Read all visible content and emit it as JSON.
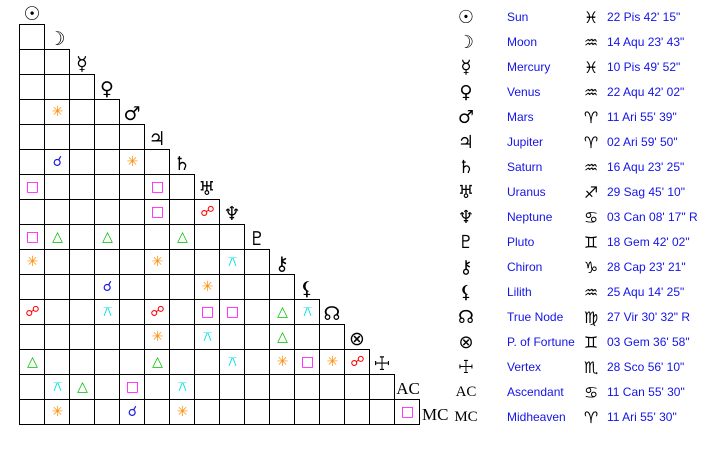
{
  "bodies": [
    {
      "name": "Sun",
      "glyph": "☉",
      "icon": "sun-icon",
      "sign": "♓",
      "sign_icon": "pisces-icon",
      "position": "22 Pis 42' 15\""
    },
    {
      "name": "Moon",
      "glyph": "☽",
      "icon": "moon-icon",
      "sign": "♒",
      "sign_icon": "aquarius-icon",
      "position": "14 Aqu 23' 43\""
    },
    {
      "name": "Mercury",
      "glyph": "☿",
      "icon": "mercury-icon",
      "sign": "♓",
      "sign_icon": "pisces-icon",
      "position": "10 Pis 49' 52\""
    },
    {
      "name": "Venus",
      "glyph": "♀",
      "icon": "venus-icon",
      "sign": "♒",
      "sign_icon": "aquarius-icon",
      "position": "22 Aqu 42' 02\""
    },
    {
      "name": "Mars",
      "glyph": "♂",
      "icon": "mars-icon",
      "sign": "♈",
      "sign_icon": "aries-icon",
      "position": "11 Ari 55' 39\""
    },
    {
      "name": "Jupiter",
      "glyph": "♃",
      "icon": "jupiter-icon",
      "sign": "♈",
      "sign_icon": "aries-icon",
      "position": "02 Ari 59' 50\""
    },
    {
      "name": "Saturn",
      "glyph": "♄",
      "icon": "saturn-icon",
      "sign": "♒",
      "sign_icon": "aquarius-icon",
      "position": "16 Aqu 23' 25\""
    },
    {
      "name": "Uranus",
      "glyph": "♅",
      "icon": "uranus-icon",
      "sign": "♐",
      "sign_icon": "sagittarius-icon",
      "position": "29 Sag 45' 10\""
    },
    {
      "name": "Neptune",
      "glyph": "♆",
      "icon": "neptune-icon",
      "sign": "♋",
      "sign_icon": "cancer-icon",
      "position": "03 Can 08' 17\" R"
    },
    {
      "name": "Pluto",
      "glyph": "♇",
      "icon": "pluto-icon",
      "sign": "♊",
      "sign_icon": "gemini-icon",
      "position": "18 Gem 42' 02\""
    },
    {
      "name": "Chiron",
      "glyph": "⚷",
      "icon": "chiron-icon",
      "sign": "♑",
      "sign_icon": "capricorn-icon",
      "position": "28 Cap 23' 21\""
    },
    {
      "name": "Lilith",
      "glyph": "⚸",
      "icon": "lilith-icon",
      "sign": "♒",
      "sign_icon": "aquarius-icon",
      "position": "25 Aqu 14' 25\""
    },
    {
      "name": "True Node",
      "glyph": "☊",
      "icon": "true-node-icon",
      "sign": "♍",
      "sign_icon": "virgo-icon",
      "position": "27 Vir 30' 32\" R"
    },
    {
      "name": "P. of Fortune",
      "glyph": "⊗",
      "icon": "part-of-fortune-icon",
      "sign": "♊",
      "sign_icon": "gemini-icon",
      "position": "03 Gem 36' 58\""
    },
    {
      "name": "Vertex",
      "glyph": "☩",
      "icon": "vertex-icon",
      "sign": "♏",
      "sign_icon": "scorpio-icon",
      "position": "28 Sco 56' 10\""
    },
    {
      "name": "Ascendant",
      "glyph": "AC",
      "text_glyph": true,
      "sign": "♋",
      "sign_icon": "cancer-icon",
      "position": "11 Can 55' 30\""
    },
    {
      "name": "Midheaven",
      "glyph": "MC",
      "text_glyph": true,
      "sign": "♈",
      "sign_icon": "aries-icon",
      "position": "11 Ari 55' 30\""
    }
  ],
  "aspect_types": {
    "conjunction": {
      "symbol": "☌",
      "color": "#1a1ae6"
    },
    "sextile": {
      "symbol": "✳",
      "color": "#ff8c00"
    },
    "square": {
      "symbol": "□",
      "color": "#ff00ff"
    },
    "trine": {
      "symbol": "△",
      "color": "#00c000"
    },
    "quincunx": {
      "symbol": "⚻",
      "color": "#00e0e0"
    },
    "opposition": {
      "symbol": "☍",
      "color": "#ff0000"
    }
  },
  "aspects": [
    [
      "Mars",
      "Moon",
      "sextile"
    ],
    [
      "Saturn",
      "Moon",
      "conjunction"
    ],
    [
      "Saturn",
      "Mars",
      "sextile"
    ],
    [
      "Uranus",
      "Sun",
      "square"
    ],
    [
      "Uranus",
      "Jupiter",
      "square"
    ],
    [
      "Neptune",
      "Jupiter",
      "square"
    ],
    [
      "Neptune",
      "Uranus",
      "opposition"
    ],
    [
      "Pluto",
      "Sun",
      "square"
    ],
    [
      "Pluto",
      "Moon",
      "trine"
    ],
    [
      "Pluto",
      "Venus",
      "trine"
    ],
    [
      "Pluto",
      "Saturn",
      "trine"
    ],
    [
      "Chiron",
      "Sun",
      "sextile"
    ],
    [
      "Chiron",
      "Jupiter",
      "sextile"
    ],
    [
      "Chiron",
      "Neptune",
      "quincunx"
    ],
    [
      "Lilith",
      "Venus",
      "conjunction"
    ],
    [
      "Lilith",
      "Uranus",
      "sextile"
    ],
    [
      "True Node",
      "Sun",
      "opposition"
    ],
    [
      "True Node",
      "Venus",
      "quincunx"
    ],
    [
      "True Node",
      "Jupiter",
      "opposition"
    ],
    [
      "True Node",
      "Uranus",
      "square"
    ],
    [
      "True Node",
      "Neptune",
      "square"
    ],
    [
      "True Node",
      "Chiron",
      "trine"
    ],
    [
      "True Node",
      "Lilith",
      "quincunx"
    ],
    [
      "P. of Fortune",
      "Jupiter",
      "sextile"
    ],
    [
      "P. of Fortune",
      "Uranus",
      "quincunx"
    ],
    [
      "P. of Fortune",
      "Chiron",
      "trine"
    ],
    [
      "Vertex",
      "Sun",
      "trine"
    ],
    [
      "Vertex",
      "Jupiter",
      "trine"
    ],
    [
      "Vertex",
      "Neptune",
      "quincunx"
    ],
    [
      "Vertex",
      "Chiron",
      "sextile"
    ],
    [
      "Vertex",
      "Lilith",
      "square"
    ],
    [
      "Vertex",
      "True Node",
      "sextile"
    ],
    [
      "Vertex",
      "P. of Fortune",
      "opposition"
    ],
    [
      "Ascendant",
      "Moon",
      "quincunx"
    ],
    [
      "Ascendant",
      "Mercury",
      "trine"
    ],
    [
      "Ascendant",
      "Mars",
      "square"
    ],
    [
      "Ascendant",
      "Saturn",
      "quincunx"
    ],
    [
      "Midheaven",
      "Moon",
      "sextile"
    ],
    [
      "Midheaven",
      "Mars",
      "conjunction"
    ],
    [
      "Midheaven",
      "Saturn",
      "sextile"
    ],
    [
      "Midheaven",
      "Ascendant",
      "square"
    ]
  ]
}
